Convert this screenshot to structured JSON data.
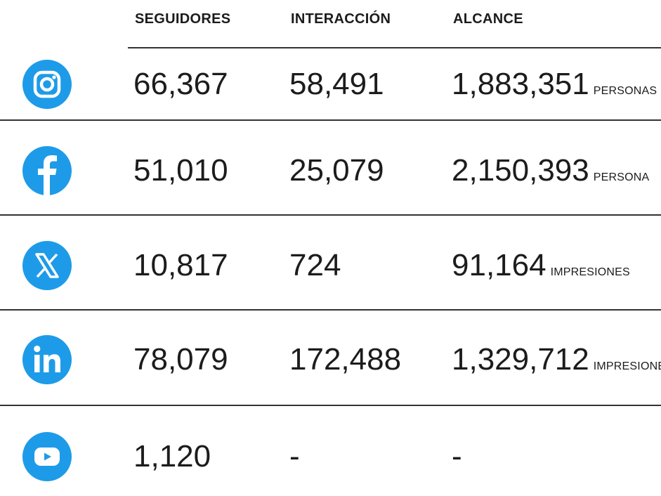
{
  "header": {
    "columns": [
      "SEGUIDORES",
      "INTERACCIÓN",
      "ALCANCE"
    ]
  },
  "rows": [
    [
      "66,367",
      "58,491",
      "1,883,351",
      "PERSONAS"
    ],
    [
      "51,010",
      "25,079",
      "2,150,393",
      "PERSONA"
    ],
    [
      "10,817",
      "724",
      "91,164",
      "IMPRESIONES"
    ],
    [
      "78,079",
      "172,488",
      "1,329,712",
      "IMPRESIONE"
    ],
    [
      "1,120",
      "-",
      "-"
    ]
  ]
}
